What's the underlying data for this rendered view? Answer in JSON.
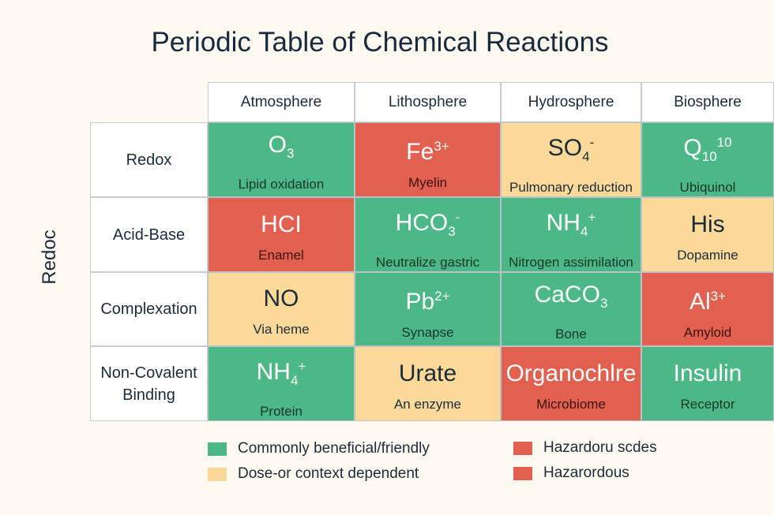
{
  "title": "Periodic Table of Chemical Reactions",
  "y_axis_label": "Redoc",
  "chart_data": {
    "type": "table",
    "columns": [
      "Atmosphere",
      "Lithosphere",
      "Hydrosphere",
      "Biosphere"
    ],
    "rows": [
      {
        "label": "Redox",
        "cells": [
          {
            "base": "O",
            "sub": "3",
            "sup": "",
            "label": "Lipid oxidation",
            "category": "green"
          },
          {
            "base": "Fe",
            "sub": "",
            "sup": "3+",
            "label": "Myelin",
            "category": "red"
          },
          {
            "base": "SO",
            "sub": "4",
            "sup": "-",
            "label": "Pulmonary reduction",
            "category": "yellow"
          },
          {
            "base": "Q",
            "sub": "10",
            "sup": "10",
            "label": "Ubiquinol",
            "category": "green"
          }
        ]
      },
      {
        "label": "Acid-Base",
        "cells": [
          {
            "base": "HCI",
            "sub": "",
            "sup": "",
            "label": "Enamel",
            "category": "red"
          },
          {
            "base": "HCO",
            "sub": "3",
            "sup": "-",
            "label": "Neutralize gastric",
            "category": "green"
          },
          {
            "base": "NH",
            "sub": "4",
            "sup": "+",
            "label": "Nitrogen assimilation",
            "category": "green"
          },
          {
            "base": "His",
            "sub": "",
            "sup": "",
            "label": "Dopamine",
            "category": "yellow"
          }
        ]
      },
      {
        "label": "Complexation",
        "cells": [
          {
            "base": "NO",
            "sub": "",
            "sup": "",
            "label": "Via heme",
            "category": "yellow"
          },
          {
            "base": "Pb",
            "sub": "",
            "sup": "2+",
            "label": "Synapse",
            "category": "green"
          },
          {
            "base": "CaCO",
            "sub": "3",
            "sup": "",
            "label": "Bone",
            "category": "green"
          },
          {
            "base": "Al",
            "sub": "",
            "sup": "3+",
            "label": "Amyloid",
            "category": "red"
          }
        ]
      },
      {
        "label": "Non-Covalent Binding",
        "cells": [
          {
            "base": "NH",
            "sub": "4",
            "sup": "+",
            "label": "Protein",
            "category": "green"
          },
          {
            "base": "Urate",
            "sub": "",
            "sup": "",
            "label": "An enzyme",
            "category": "yellow"
          },
          {
            "base": "Organochlre",
            "sub": "",
            "sup": "",
            "label": "Microbiome",
            "category": "red"
          },
          {
            "base": "Insulin",
            "sub": "",
            "sup": "",
            "label": "Receptor",
            "category": "green"
          }
        ]
      }
    ],
    "colors": {
      "green": "#4db887",
      "red": "#e2604f",
      "yellow": "#fbd998"
    }
  },
  "legend": [
    {
      "label": "Commonly beneficial/friendly",
      "category": "green"
    },
    {
      "label": "Dose-or context dependent",
      "category": "yellow"
    },
    {
      "label": "Hazardoru scdes",
      "category": "red"
    },
    {
      "label": "Hazarordous",
      "category": "red"
    }
  ]
}
